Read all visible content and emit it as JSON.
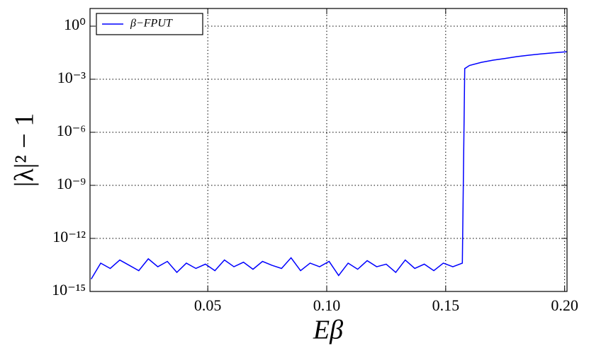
{
  "chart_data": {
    "type": "line",
    "xlabel": "Eβ",
    "ylabel": "|λ|² − 1",
    "log_y": true,
    "grid": true,
    "legend": "upper left",
    "xlim": [
      0.0005,
      0.201
    ],
    "ylim": [
      1e-15,
      10
    ],
    "xticks": [
      0.05,
      {
        "value": 0.1,
        "label": "0.10"
      },
      0.15,
      {
        "value": 0.2,
        "label": "0.20"
      }
    ],
    "yticks": [
      {
        "value": 1,
        "label": "10⁰"
      },
      {
        "value": 0.001,
        "label": "10⁻³"
      },
      {
        "value": 1e-06,
        "label": "10⁻⁶"
      },
      {
        "value": 1e-09,
        "label": "10⁻⁹"
      },
      {
        "value": 1e-12,
        "label": "10⁻¹²"
      },
      {
        "value": 1e-15,
        "label": "10⁻¹⁵"
      }
    ],
    "x": [
      0.001,
      0.005,
      0.009,
      0.013,
      0.017,
      0.021,
      0.025,
      0.029,
      0.033,
      0.037,
      0.041,
      0.045,
      0.049,
      0.053,
      0.057,
      0.061,
      0.065,
      0.069,
      0.073,
      0.077,
      0.081,
      0.085,
      0.089,
      0.093,
      0.097,
      0.101,
      0.105,
      0.109,
      0.113,
      0.117,
      0.121,
      0.125,
      0.129,
      0.133,
      0.137,
      0.141,
      0.145,
      0.149,
      0.153,
      0.157,
      0.158,
      0.16,
      0.165,
      0.17,
      0.175,
      0.18,
      0.185,
      0.19,
      0.195,
      0.2,
      0.201
    ],
    "series": [
      {
        "name": "β−FPUT",
        "color": "#0000ff",
        "values": [
          5e-15,
          4e-14,
          2e-14,
          6e-14,
          3e-14,
          1.5e-14,
          7e-14,
          2.5e-14,
          5e-14,
          1.2e-14,
          4e-14,
          2e-14,
          3.5e-14,
          1.5e-14,
          6e-14,
          2.5e-14,
          4.5e-14,
          1.8e-14,
          5e-14,
          3e-14,
          2e-14,
          8e-14,
          1.5e-14,
          4e-14,
          2.5e-14,
          5e-14,
          8e-15,
          4e-14,
          1.8e-14,
          5.5e-14,
          2.5e-14,
          3.5e-14,
          1.2e-14,
          6e-14,
          2e-14,
          3.5e-14,
          1.5e-14,
          4e-14,
          2.5e-14,
          4e-14,
          0.004,
          0.006,
          0.009,
          0.012,
          0.015,
          0.019,
          0.023,
          0.027,
          0.031,
          0.035,
          0.036
        ]
      }
    ]
  }
}
